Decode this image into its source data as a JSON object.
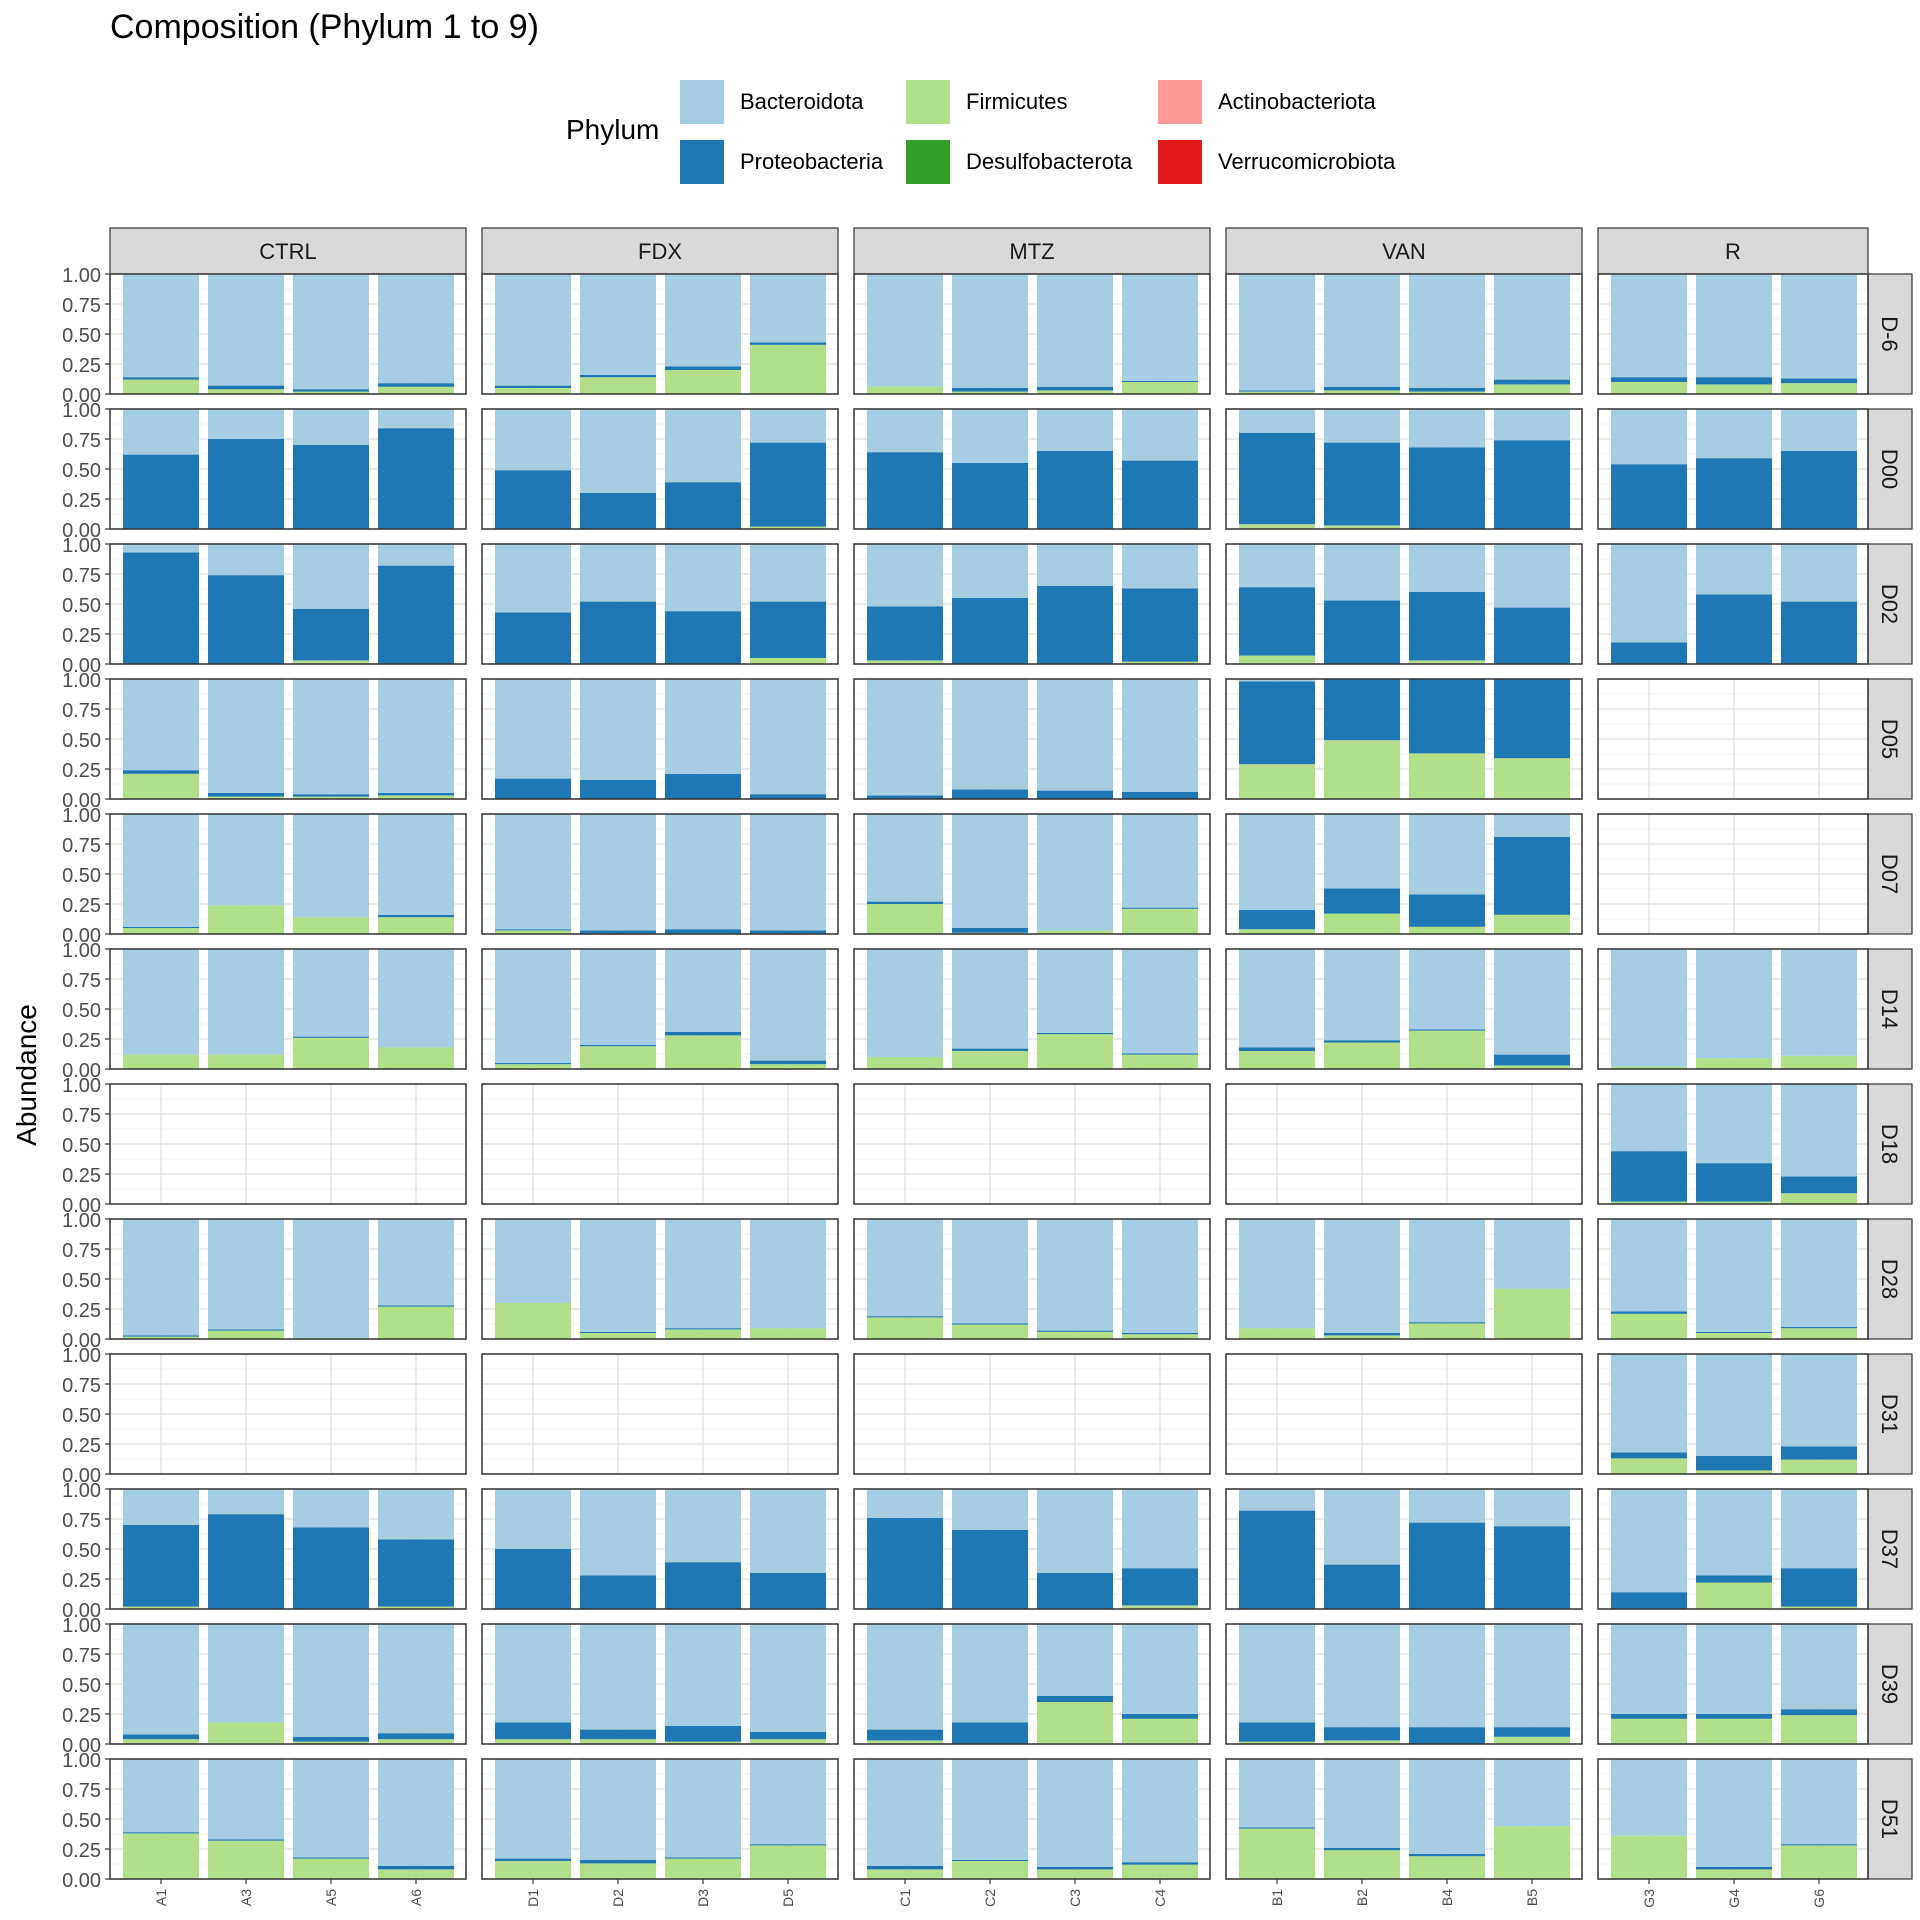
{
  "chart_data": {
    "type": "bar",
    "stacked": true,
    "title": "Composition (Phylum 1 to 9)",
    "ylabel": "Abundance",
    "xlabel": "",
    "ylim": [
      0,
      1
    ],
    "y_ticks": [
      "0.00",
      "0.25",
      "0.50",
      "0.75",
      "1.00"
    ],
    "legend": {
      "title": "Phylum",
      "position": "top",
      "entries": [
        {
          "name": "Bacteroidota",
          "color": "#A6CEE3"
        },
        {
          "name": "Proteobacteria",
          "color": "#1F78B4"
        },
        {
          "name": "Firmicutes",
          "color": "#B2DF8A"
        },
        {
          "name": "Desulfobacterota",
          "color": "#33A02C"
        },
        {
          "name": "Actinobacteriota",
          "color": "#FB9A99"
        },
        {
          "name": "Verrucomicrobiota",
          "color": "#E31A1C"
        }
      ]
    },
    "stack_order_bottom_to_top": [
      "Firmicutes",
      "Proteobacteria",
      "Bacteroidota"
    ],
    "column_facets": [
      {
        "label": "CTRL",
        "samples": [
          "A1",
          "A3",
          "A5",
          "A6"
        ]
      },
      {
        "label": "FDX",
        "samples": [
          "D1",
          "D2",
          "D3",
          "D5"
        ]
      },
      {
        "label": "MTZ",
        "samples": [
          "C1",
          "C2",
          "C3",
          "C4"
        ]
      },
      {
        "label": "VAN",
        "samples": [
          "B1",
          "B2",
          "B4",
          "B5"
        ]
      },
      {
        "label": "R",
        "samples": [
          "G3",
          "G4",
          "G6"
        ]
      }
    ],
    "row_facets": [
      "D-6",
      "D00",
      "D02",
      "D05",
      "D07",
      "D14",
      "D18",
      "D28",
      "D31",
      "D37",
      "D39",
      "D51"
    ],
    "panels": [
      [
        [
          [
            0.12,
            0.02
          ],
          [
            0.04,
            0.03
          ],
          [
            0.02,
            0.02
          ],
          [
            0.06,
            0.03
          ]
        ],
        [
          [
            0.05,
            0.02
          ],
          [
            0.14,
            0.02
          ],
          [
            0.2,
            0.03
          ],
          [
            0.41,
            0.02
          ]
        ],
        [
          [
            0.06,
            0
          ],
          [
            0.02,
            0.03
          ],
          [
            0.03,
            0.03
          ],
          [
            0.1,
            0.01
          ]
        ],
        [
          [
            0.02,
            0.01
          ],
          [
            0.03,
            0.03
          ],
          [
            0.02,
            0.03
          ],
          [
            0.08,
            0.04
          ]
        ],
        [
          [
            0.1,
            0.04
          ],
          [
            0.08,
            0.06
          ],
          [
            0.09,
            0.04
          ]
        ]
      ],
      [
        [
          [
            0,
            0.62
          ],
          [
            0,
            0.75
          ],
          [
            0,
            0.7
          ],
          [
            0,
            0.84
          ]
        ],
        [
          [
            0,
            0.49
          ],
          [
            0,
            0.3
          ],
          [
            0,
            0.39
          ],
          [
            0.02,
            0.7
          ]
        ],
        [
          [
            0,
            0.64
          ],
          [
            0,
            0.55
          ],
          [
            0,
            0.65
          ],
          [
            0,
            0.57
          ]
        ],
        [
          [
            0.04,
            0.76
          ],
          [
            0.03,
            0.69
          ],
          [
            0,
            0.68
          ],
          [
            0,
            0.74
          ]
        ],
        [
          [
            0,
            0.54
          ],
          [
            0,
            0.59
          ],
          [
            0,
            0.65
          ]
        ]
      ],
      [
        [
          [
            0,
            0.93
          ],
          [
            0,
            0.74
          ],
          [
            0.03,
            0.43
          ],
          [
            0,
            0.82
          ]
        ],
        [
          [
            0,
            0.43
          ],
          [
            0,
            0.52
          ],
          [
            0,
            0.44
          ],
          [
            0.05,
            0.47
          ]
        ],
        [
          [
            0.03,
            0.45
          ],
          [
            0,
            0.55
          ],
          [
            0,
            0.65
          ],
          [
            0.02,
            0.61
          ]
        ],
        [
          [
            0.07,
            0.57
          ],
          [
            0,
            0.53
          ],
          [
            0.03,
            0.57
          ],
          [
            0,
            0.47
          ]
        ],
        [
          [
            0,
            0.18
          ],
          [
            0,
            0.58
          ],
          [
            0,
            0.52
          ]
        ]
      ],
      [
        [
          [
            0.21,
            0.03
          ],
          [
            0.02,
            0.03
          ],
          [
            0.02,
            0.02
          ],
          [
            0.03,
            0.02
          ]
        ],
        [
          [
            0,
            0.17
          ],
          [
            0,
            0.16
          ],
          [
            0,
            0.21
          ],
          [
            0,
            0.04
          ]
        ],
        [
          [
            0,
            0.03
          ],
          [
            0,
            0.08
          ],
          [
            0,
            0.07
          ],
          [
            0,
            0.06
          ]
        ],
        [
          [
            0.29,
            0.69
          ],
          [
            0.49,
            0.51
          ],
          [
            0.38,
            0.62
          ],
          [
            0.34,
            0.66
          ]
        ],
        null
      ],
      [
        [
          [
            0.05,
            0.01
          ],
          [
            0.24,
            0
          ],
          [
            0.14,
            0
          ],
          [
            0.14,
            0.02
          ]
        ],
        [
          [
            0.03,
            0.01
          ],
          [
            0,
            0.03
          ],
          [
            0,
            0.04
          ],
          [
            0,
            0.03
          ]
        ],
        [
          [
            0.25,
            0.02
          ],
          [
            0.01,
            0.04
          ],
          [
            0.03,
            0
          ],
          [
            0.21,
            0.01
          ]
        ],
        [
          [
            0.04,
            0.16
          ],
          [
            0.17,
            0.21
          ],
          [
            0.06,
            0.27
          ],
          [
            0.16,
            0.65
          ]
        ],
        null
      ],
      [
        [
          [
            0.12,
            0
          ],
          [
            0.12,
            0
          ],
          [
            0.26,
            0.01
          ],
          [
            0.18,
            0
          ]
        ],
        [
          [
            0.04,
            0.01
          ],
          [
            0.19,
            0.01
          ],
          [
            0.28,
            0.03
          ],
          [
            0.04,
            0.03
          ]
        ],
        [
          [
            0.1,
            0
          ],
          [
            0.15,
            0.02
          ],
          [
            0.29,
            0.01
          ],
          [
            0.12,
            0.01
          ]
        ],
        [
          [
            0.15,
            0.03
          ],
          [
            0.22,
            0.02
          ],
          [
            0.32,
            0.01
          ],
          [
            0.03,
            0.09
          ]
        ],
        [
          [
            0.02,
            0
          ],
          [
            0.09,
            0
          ],
          [
            0.11,
            0
          ]
        ]
      ],
      [
        null,
        null,
        null,
        null,
        [
          [
            0.02,
            0.42
          ],
          [
            0.02,
            0.32
          ],
          [
            0.09,
            0.14
          ]
        ]
      ],
      [
        [
          [
            0.02,
            0.01
          ],
          [
            0.07,
            0.01
          ],
          [
            0.01,
            0
          ],
          [
            0.27,
            0.01
          ]
        ],
        [
          [
            0.3,
            0
          ],
          [
            0.05,
            0.01
          ],
          [
            0.08,
            0.01
          ],
          [
            0.09,
            0
          ]
        ],
        [
          [
            0.18,
            0.01
          ],
          [
            0.12,
            0.01
          ],
          [
            0.06,
            0.01
          ],
          [
            0.04,
            0.01
          ]
        ],
        [
          [
            0.09,
            0
          ],
          [
            0.03,
            0.02
          ],
          [
            0.13,
            0.01
          ],
          [
            0.42,
            0
          ]
        ],
        [
          [
            0.21,
            0.02
          ],
          [
            0.05,
            0.01
          ],
          [
            0.09,
            0.01
          ]
        ]
      ],
      [
        null,
        null,
        null,
        null,
        [
          [
            0.13,
            0.05
          ],
          [
            0.03,
            0.12
          ],
          [
            0.12,
            0.11
          ]
        ]
      ],
      [
        [
          [
            0.02,
            0.68
          ],
          [
            0,
            0.79
          ],
          [
            0,
            0.68
          ],
          [
            0.02,
            0.56
          ]
        ],
        [
          [
            0,
            0.5
          ],
          [
            0,
            0.28
          ],
          [
            0,
            0.39
          ],
          [
            0,
            0.3
          ]
        ],
        [
          [
            0,
            0.76
          ],
          [
            0,
            0.66
          ],
          [
            0,
            0.3
          ],
          [
            0.03,
            0.31
          ]
        ],
        [
          [
            0,
            0.82
          ],
          [
            0,
            0.37
          ],
          [
            0,
            0.72
          ],
          [
            0,
            0.69
          ]
        ],
        [
          [
            0,
            0.14
          ],
          [
            0.22,
            0.06
          ],
          [
            0.02,
            0.32
          ]
        ]
      ],
      [
        [
          [
            0.04,
            0.04
          ],
          [
            0.18,
            0
          ],
          [
            0.02,
            0.04
          ],
          [
            0.04,
            0.05
          ]
        ],
        [
          [
            0.04,
            0.14
          ],
          [
            0.04,
            0.08
          ],
          [
            0.02,
            0.13
          ],
          [
            0.04,
            0.06
          ]
        ],
        [
          [
            0.03,
            0.09
          ],
          [
            0,
            0.18
          ],
          [
            0.35,
            0.05
          ],
          [
            0.21,
            0.04
          ]
        ],
        [
          [
            0.02,
            0.16
          ],
          [
            0.03,
            0.11
          ],
          [
            0,
            0.14
          ],
          [
            0.06,
            0.08
          ]
        ],
        [
          [
            0.21,
            0.04
          ],
          [
            0.21,
            0.04
          ],
          [
            0.24,
            0.05
          ]
        ]
      ],
      [
        [
          [
            0.38,
            0.01
          ],
          [
            0.32,
            0.01
          ],
          [
            0.17,
            0.01
          ],
          [
            0.08,
            0.03
          ]
        ],
        [
          [
            0.15,
            0.02
          ],
          [
            0.13,
            0.03
          ],
          [
            0.17,
            0.01
          ],
          [
            0.28,
            0.01
          ]
        ],
        [
          [
            0.08,
            0.03
          ],
          [
            0.15,
            0.01
          ],
          [
            0.08,
            0.02
          ],
          [
            0.12,
            0.02
          ]
        ],
        [
          [
            0.42,
            0.01
          ],
          [
            0.24,
            0.02
          ],
          [
            0.19,
            0.02
          ],
          [
            0.44,
            0
          ]
        ],
        [
          [
            0.36,
            0
          ],
          [
            0.08,
            0.02
          ],
          [
            0.28,
            0.01
          ]
        ]
      ]
    ]
  }
}
